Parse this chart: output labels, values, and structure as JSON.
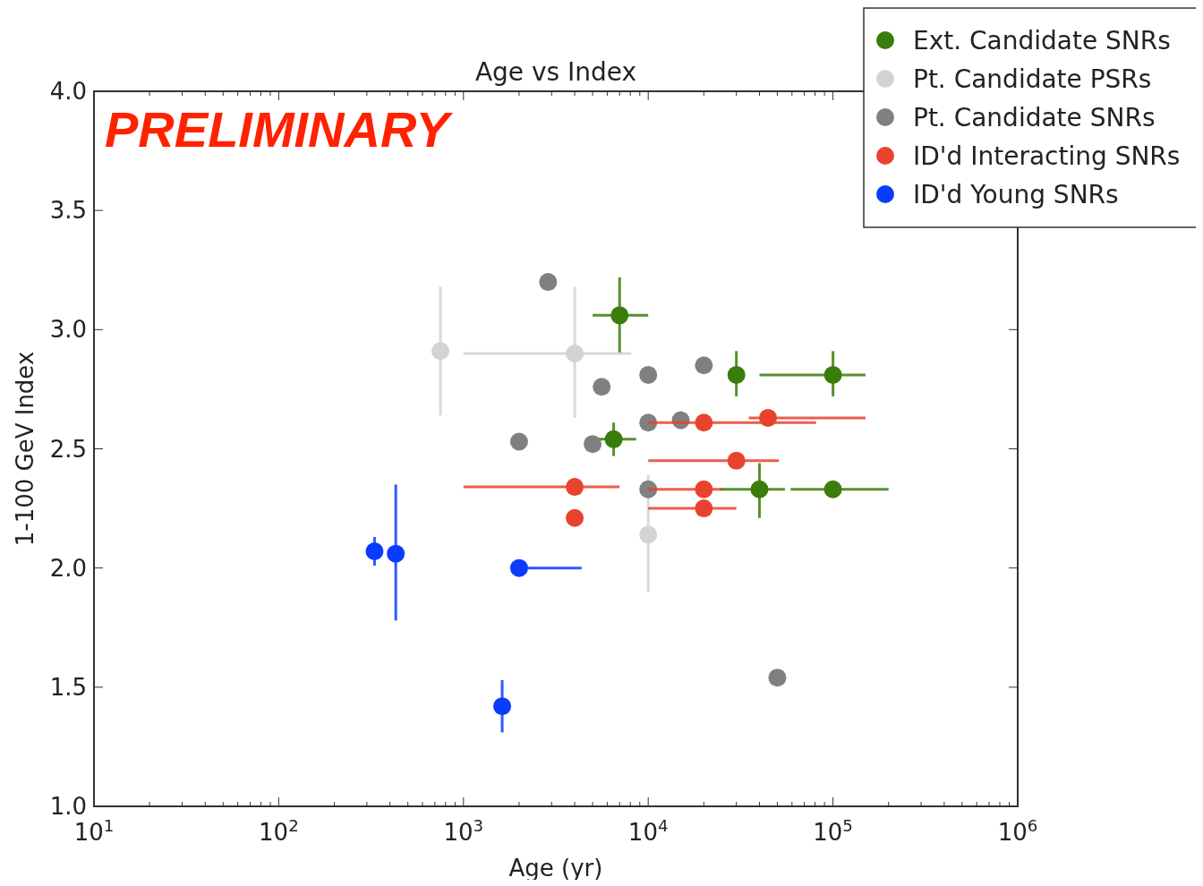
{
  "chart_data": {
    "type": "scatter",
    "title": "Age vs Index",
    "xlabel": "Age (yr)",
    "ylabel": "1-100 GeV Index",
    "log": "x",
    "xlim": [
      10,
      1000000
    ],
    "ylim": [
      1.0,
      4.0
    ],
    "xticks": [
      {
        "value": 10,
        "label": "10$^{1}$"
      },
      {
        "value": 100,
        "label": "10$^{2}$"
      },
      {
        "value": 1000,
        "label": "10$^{3}$"
      },
      {
        "value": 10000,
        "label": "10$^{4}$"
      },
      {
        "value": 100000,
        "label": "10$^{5}$"
      },
      {
        "value": 1000000,
        "label": "10$^{6}$"
      }
    ],
    "yticks": [
      {
        "value": 1,
        "label": "1.0"
      },
      {
        "value": 1.5,
        "label": "1.5"
      },
      {
        "value": 2,
        "label": "2.0"
      },
      {
        "value": 2.5,
        "label": "2.5"
      },
      {
        "value": 3,
        "label": "3.0"
      },
      {
        "value": 3.5,
        "label": "3.5"
      },
      {
        "value": 4,
        "label": "4.0"
      }
    ],
    "grid": false,
    "legend": "top right",
    "marker": "circle",
    "annotations": [
      "PRELIMINARY"
    ],
    "series": [
      {
        "name": "Ext. Candidate SNRs",
        "color": "#3a7d0a",
        "x": [
          7000,
          30000,
          100000,
          6500,
          40000,
          100000
        ],
        "values": [
          3.06,
          2.81,
          2.81,
          2.54,
          2.33,
          2.33
        ],
        "errors": [
          [
            2.9,
            3.22
          ],
          [
            2.72,
            2.91
          ],
          [
            2.72,
            2.91
          ],
          [
            2.47,
            2.61
          ],
          [
            2.21,
            2.44
          ],
          null
        ],
        "xerrors": [
          [
            5000,
            10000
          ],
          null,
          [
            40000,
            150000
          ],
          [
            4600,
            8600
          ],
          [
            24500,
            55000
          ],
          [
            59000,
            200000
          ]
        ]
      },
      {
        "name": "Pt. Candidate PSRs",
        "color": "#d3d3d3",
        "x": [
          750,
          4000,
          10000
        ],
        "values": [
          2.91,
          2.9,
          2.14
        ],
        "errors": [
          [
            2.64,
            3.18
          ],
          [
            2.63,
            3.18
          ],
          [
            1.9,
            2.39
          ]
        ],
        "xerrors": [
          null,
          [
            1000,
            8100
          ],
          null
        ]
      },
      {
        "name": "Pt. Candidate SNRs",
        "color": "#808080",
        "x": [
          2870,
          5600,
          10000,
          20000,
          2000,
          5000,
          10000,
          15000,
          10000,
          50000
        ],
        "values": [
          3.2,
          2.76,
          2.81,
          2.85,
          2.53,
          2.52,
          2.61,
          2.62,
          2.33,
          1.54
        ]
      },
      {
        "name": "ID'd Interacting SNRs",
        "color": "#e8432e",
        "x": [
          4000,
          4000,
          20000,
          44500,
          30000,
          20000,
          20000
        ],
        "values": [
          2.34,
          2.21,
          2.61,
          2.63,
          2.45,
          2.33,
          2.25
        ],
        "xerrors": [
          [
            1000,
            7000
          ],
          null,
          [
            10000,
            81000
          ],
          [
            35000,
            150000
          ],
          [
            10000,
            51000
          ],
          [
            10000,
            25000
          ],
          [
            10000,
            30000
          ]
        ]
      },
      {
        "name": "ID'd Young SNRs",
        "color": "#0a3cff",
        "x": [
          330,
          430,
          2000,
          1620
        ],
        "values": [
          2.07,
          2.06,
          2.0,
          1.42
        ],
        "errors": [
          [
            2.01,
            2.13
          ],
          [
            1.78,
            2.35
          ],
          null,
          [
            1.31,
            1.53
          ]
        ],
        "xerrors": [
          null,
          null,
          [
            2000,
            4360
          ],
          null
        ]
      }
    ]
  }
}
